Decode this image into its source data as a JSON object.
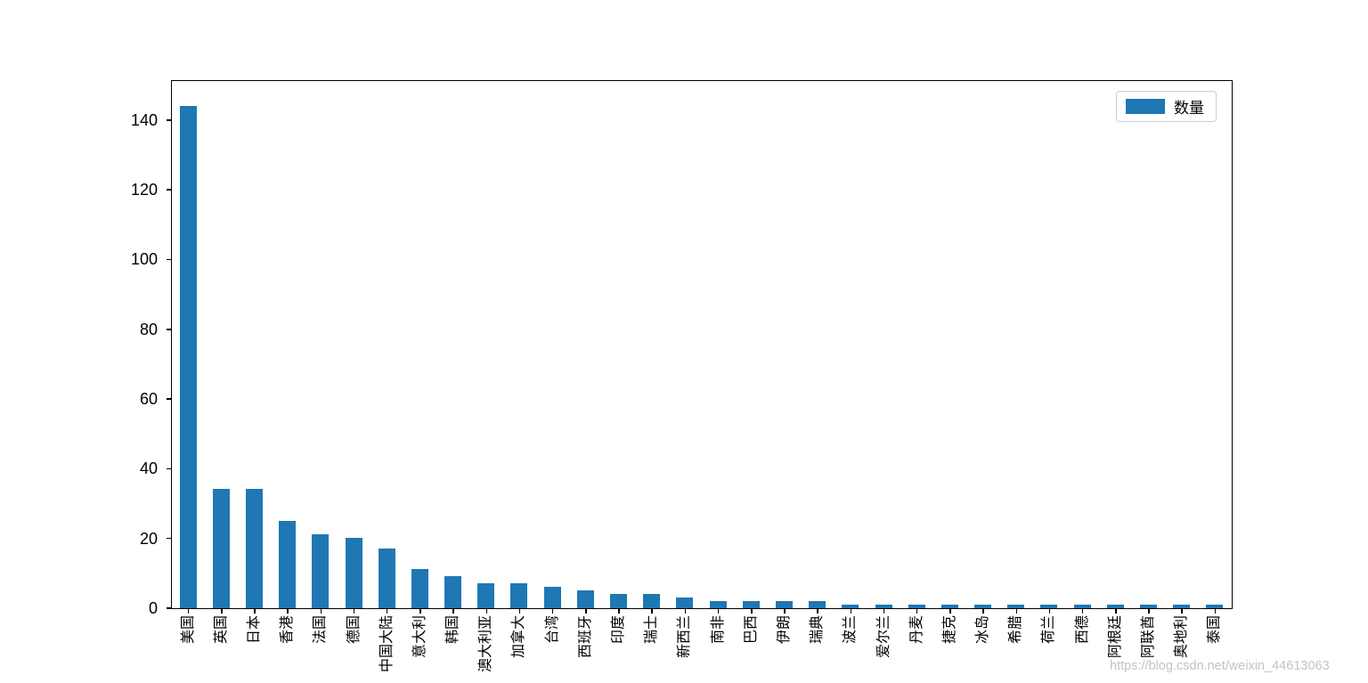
{
  "chart_data": {
    "type": "bar",
    "title": "",
    "xlabel": "",
    "ylabel": "",
    "categories": [
      "美国",
      "英国",
      "日本",
      "香港",
      "法国",
      "德国",
      "中国大陆",
      "意大利",
      "韩国",
      "澳大利亚",
      "加拿大",
      "台湾",
      "西班牙",
      "印度",
      "瑞士",
      "新西兰",
      "南非",
      "巴西",
      "伊朗",
      "瑞典",
      "波兰",
      "爱尔兰",
      "丹麦",
      "捷克",
      "冰岛",
      "希腊",
      "荷兰",
      "西德",
      "阿根廷",
      "阿联酋",
      "奥地利",
      "泰国"
    ],
    "series": [
      {
        "name": "数量",
        "values": [
          144,
          34,
          34,
          25,
          21,
          20,
          17,
          11,
          9,
          7,
          7,
          6,
          5,
          4,
          4,
          3,
          2,
          2,
          2,
          2,
          1,
          1,
          1,
          1,
          1,
          1,
          1,
          1,
          1,
          1,
          1,
          1
        ]
      }
    ],
    "yticks": [
      0,
      20,
      40,
      60,
      80,
      100,
      120,
      140
    ],
    "ylim": [
      0,
      151.2
    ],
    "grid": false,
    "legend": {
      "label": "数量",
      "position": "upper right"
    },
    "bar_color": "#1f77b4"
  },
  "watermark": "https://blog.csdn.net/weixin_44613063"
}
